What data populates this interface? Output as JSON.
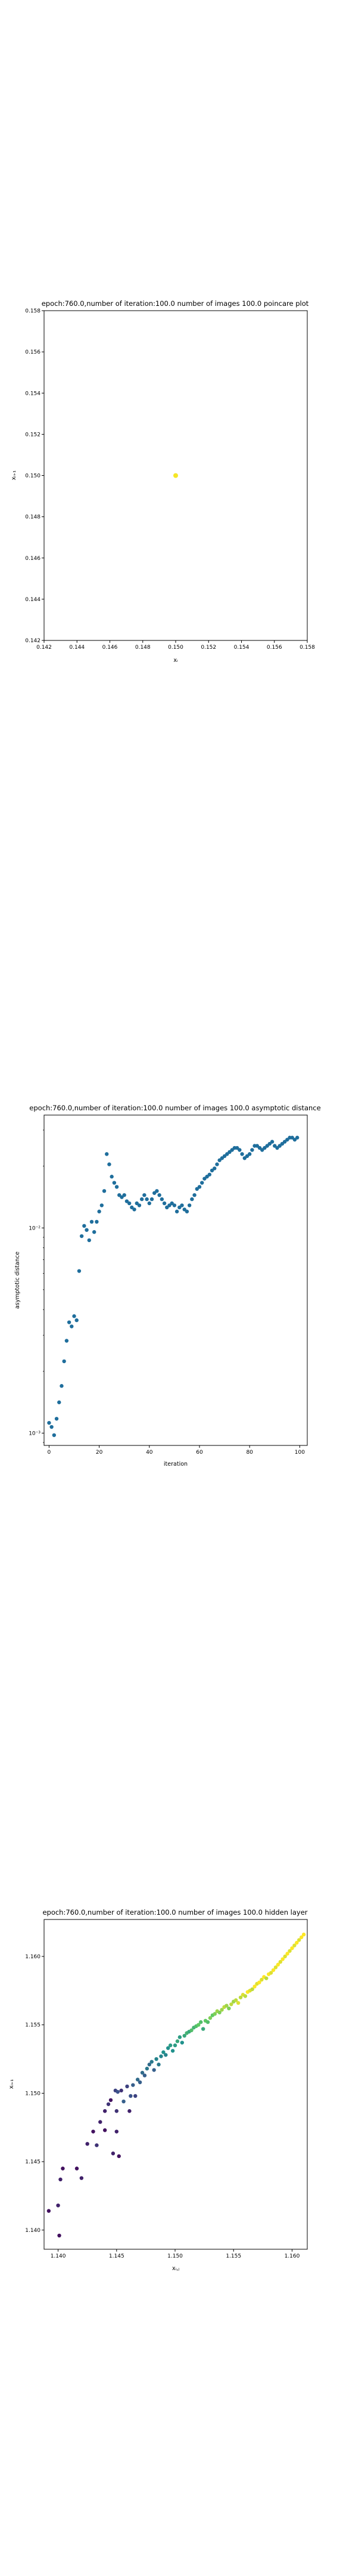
{
  "chart_data": [
    {
      "type": "scatter",
      "title": "epoch:760.0,number of iteration:100.0 number of images 100.0 poincare plot",
      "xlabel": "xᵢ",
      "ylabel": "xᵢ₊₁",
      "xlim": [
        0.142,
        0.158
      ],
      "ylim": [
        0.142,
        0.158
      ],
      "xticks": [
        "0.142",
        "0.144",
        "0.146",
        "0.148",
        "0.150",
        "0.152",
        "0.154",
        "0.156",
        "0.158"
      ],
      "yticks": [
        "0.142",
        "0.144",
        "0.146",
        "0.148",
        "0.150",
        "0.152",
        "0.154",
        "0.156",
        "0.158"
      ],
      "point_color": "#f5e626",
      "points": [
        {
          "x": 0.15,
          "y": 0.15
        }
      ]
    },
    {
      "type": "scatter",
      "title": "epoch:760.0,number of iteration:100.0  number of images 100.0 asymptotic distance",
      "xlabel": "iteration",
      "ylabel": "asymptotic distance",
      "yscale": "log",
      "xlim": [
        -2,
        103
      ],
      "ylim_log10": [
        -3.06,
        -1.45
      ],
      "xticks": [
        "0",
        "20",
        "40",
        "60",
        "80",
        "100"
      ],
      "xtick_values": [
        0,
        20,
        40,
        60,
        80,
        100
      ],
      "yticks": [
        "10⁻³",
        "10⁻²"
      ],
      "ytick_values_log10": [
        -3,
        -2
      ],
      "point_color": "#1f6e9c",
      "x": [
        0,
        1,
        2,
        3,
        4,
        5,
        6,
        7,
        8,
        9,
        10,
        11,
        12,
        13,
        14,
        15,
        16,
        17,
        18,
        19,
        20,
        21,
        22,
        23,
        24,
        25,
        26,
        27,
        28,
        29,
        30,
        31,
        32,
        33,
        34,
        35,
        36,
        37,
        38,
        39,
        40,
        41,
        42,
        43,
        44,
        45,
        46,
        47,
        48,
        49,
        50,
        51,
        52,
        53,
        54,
        55,
        56,
        57,
        58,
        59,
        60,
        61,
        62,
        63,
        64,
        65,
        66,
        67,
        68,
        69,
        70,
        71,
        72,
        73,
        74,
        75,
        76,
        77,
        78,
        79,
        80,
        81,
        82,
        83,
        84,
        85,
        86,
        87,
        88,
        89,
        90,
        91,
        92,
        93,
        94,
        95,
        96,
        97,
        98,
        99
      ],
      "y_log10": [
        -2.95,
        -2.97,
        -3.01,
        -2.93,
        -2.85,
        -2.77,
        -2.65,
        -2.55,
        -2.46,
        -2.48,
        -2.43,
        -2.45,
        -2.21,
        -2.04,
        -1.99,
        -2.01,
        -2.06,
        -1.97,
        -2.02,
        -1.97,
        -1.92,
        -1.89,
        -1.82,
        -1.64,
        -1.69,
        -1.75,
        -1.78,
        -1.8,
        -1.84,
        -1.85,
        -1.84,
        -1.87,
        -1.88,
        -1.9,
        -1.91,
        -1.88,
        -1.89,
        -1.86,
        -1.84,
        -1.86,
        -1.88,
        -1.86,
        -1.83,
        -1.82,
        -1.84,
        -1.86,
        -1.88,
        -1.9,
        -1.89,
        -1.88,
        -1.89,
        -1.92,
        -1.9,
        -1.89,
        -1.91,
        -1.92,
        -1.89,
        -1.86,
        -1.84,
        -1.81,
        -1.8,
        -1.78,
        -1.76,
        -1.75,
        -1.74,
        -1.72,
        -1.71,
        -1.69,
        -1.67,
        -1.66,
        -1.65,
        -1.64,
        -1.63,
        -1.62,
        -1.61,
        -1.61,
        -1.62,
        -1.64,
        -1.66,
        -1.65,
        -1.64,
        -1.62,
        -1.6,
        -1.6,
        -1.61,
        -1.62,
        -1.61,
        -1.6,
        -1.59,
        -1.58,
        -1.6,
        -1.61,
        -1.6,
        -1.59,
        -1.58,
        -1.57,
        -1.56,
        -1.56,
        -1.57,
        -1.56
      ]
    },
    {
      "type": "scatter",
      "title": "epoch:760.0,number of iteration:100.0  number of images 100.0 hidden layer",
      "xlabel": "xᵢ,ⱼ",
      "ylabel": "xᵢ₊₁",
      "xlim": [
        1.1388,
        1.1613
      ],
      "ylim": [
        1.1386,
        1.1627
      ],
      "xticks": [
        "1.140",
        "1.145",
        "1.150",
        "1.155",
        "1.160"
      ],
      "xtick_values": [
        1.14,
        1.145,
        1.15,
        1.155,
        1.16
      ],
      "yticks": [
        "1.140",
        "1.145",
        "1.150",
        "1.155",
        "1.160"
      ],
      "ytick_values": [
        1.14,
        1.145,
        1.15,
        1.155,
        1.16
      ],
      "colormap": "viridis",
      "x": [
        1.1392,
        1.1401,
        1.14,
        1.1402,
        1.1404,
        1.1416,
        1.142,
        1.1425,
        1.143,
        1.1433,
        1.1436,
        1.144,
        1.144,
        1.1443,
        1.1445,
        1.1447,
        1.1449,
        1.145,
        1.145,
        1.1451,
        1.1452,
        1.1454,
        1.1456,
        1.1459,
        1.1461,
        1.1462,
        1.1464,
        1.1466,
        1.1468,
        1.147,
        1.1472,
        1.1474,
        1.1476,
        1.1478,
        1.148,
        1.1482,
        1.1484,
        1.1486,
        1.1488,
        1.149,
        1.1492,
        1.1494,
        1.1496,
        1.1498,
        1.15,
        1.1502,
        1.1504,
        1.1506,
        1.1508,
        1.151,
        1.1512,
        1.1514,
        1.1516,
        1.1518,
        1.152,
        1.1522,
        1.1524,
        1.1526,
        1.1528,
        1.153,
        1.1532,
        1.1534,
        1.1536,
        1.1538,
        1.154,
        1.1542,
        1.1544,
        1.1546,
        1.1548,
        1.155,
        1.1552,
        1.1554,
        1.1556,
        1.1558,
        1.156,
        1.1562,
        1.1564,
        1.1566,
        1.1568,
        1.157,
        1.1572,
        1.1574,
        1.1576,
        1.1578,
        1.158,
        1.1582,
        1.1584,
        1.1586,
        1.1588,
        1.159,
        1.1592,
        1.1594,
        1.1596,
        1.1598,
        1.16,
        1.1602,
        1.1604,
        1.1606,
        1.1608,
        1.161
      ],
      "y": [
        1.1414,
        1.1396,
        1.1418,
        1.1437,
        1.1445,
        1.1445,
        1.1438,
        1.1463,
        1.1472,
        1.1462,
        1.1479,
        1.1473,
        1.1487,
        1.1492,
        1.1495,
        1.1456,
        1.1502,
        1.1487,
        1.1472,
        1.1501,
        1.1454,
        1.1502,
        1.1494,
        1.1505,
        1.1487,
        1.1498,
        1.1506,
        1.1498,
        1.151,
        1.1508,
        1.1515,
        1.1513,
        1.1518,
        1.1521,
        1.1523,
        1.1517,
        1.1525,
        1.1521,
        1.1527,
        1.153,
        1.1528,
        1.1533,
        1.1535,
        1.1531,
        1.1535,
        1.1538,
        1.1541,
        1.1537,
        1.1542,
        1.1544,
        1.1545,
        1.1546,
        1.1548,
        1.1549,
        1.155,
        1.1552,
        1.1547,
        1.1553,
        1.1552,
        1.1555,
        1.1557,
        1.1558,
        1.156,
        1.1559,
        1.1561,
        1.1563,
        1.1564,
        1.1562,
        1.1565,
        1.1567,
        1.1568,
        1.1566,
        1.157,
        1.1572,
        1.1571,
        1.1574,
        1.1575,
        1.1576,
        1.1578,
        1.158,
        1.1581,
        1.1583,
        1.1585,
        1.1584,
        1.1587,
        1.1588,
        1.159,
        1.1592,
        1.1594,
        1.1596,
        1.1598,
        1.16,
        1.1602,
        1.1604,
        1.1606,
        1.1608,
        1.161,
        1.1612,
        1.1614,
        1.1616
      ],
      "c": [
        0.05,
        0.05,
        0.1,
        0.1,
        0.05,
        0.05,
        0.1,
        0.1,
        0.05,
        0.15,
        0.1,
        0.05,
        0.1,
        0.15,
        0.05,
        0.1,
        0.2,
        0.15,
        0.1,
        0.25,
        0.05,
        0.15,
        0.3,
        0.2,
        0.1,
        0.25,
        0.3,
        0.2,
        0.35,
        0.3,
        0.35,
        0.3,
        0.4,
        0.35,
        0.4,
        0.3,
        0.45,
        0.4,
        0.45,
        0.5,
        0.45,
        0.5,
        0.55,
        0.5,
        0.55,
        0.6,
        0.55,
        0.5,
        0.6,
        0.65,
        0.6,
        0.7,
        0.65,
        0.7,
        0.75,
        0.7,
        0.6,
        0.75,
        0.7,
        0.8,
        0.75,
        0.8,
        0.85,
        0.8,
        0.85,
        0.9,
        0.85,
        0.8,
        0.9,
        0.85,
        0.9,
        0.95,
        0.9,
        0.95,
        0.9,
        1.0,
        0.95,
        0.9,
        1.0,
        0.95,
        1.0,
        0.95,
        1.0,
        0.9,
        1.0,
        0.95,
        1.0,
        0.95,
        1.0,
        0.95,
        1.0,
        0.95,
        1.0,
        0.95,
        1.0,
        0.95,
        1.0,
        0.95,
        1.0,
        1.0
      ]
    }
  ]
}
